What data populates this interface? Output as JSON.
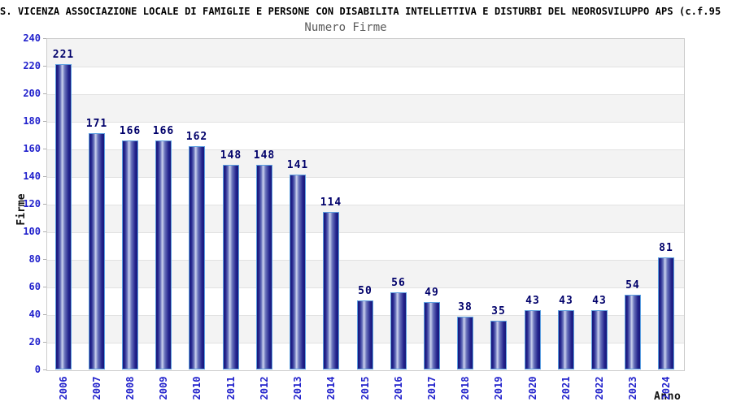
{
  "header": {
    "title": "S. VICENZA ASSOCIAZIONE LOCALE DI FAMIGLIE E PERSONE CON DISABILITA INTELLETTIVA E DISTURBI DEL NEOROSVILUPPO APS (c.f.95"
  },
  "chart_data": {
    "type": "bar",
    "title": "Numero Firme",
    "xlabel": "Anno",
    "ylabel": "Firme",
    "categories": [
      "2006",
      "2007",
      "2008",
      "2009",
      "2010",
      "2011",
      "2012",
      "2013",
      "2014",
      "2015",
      "2016",
      "2017",
      "2018",
      "2019",
      "2020",
      "2021",
      "2022",
      "2023",
      "2024"
    ],
    "values": [
      221,
      171,
      166,
      166,
      162,
      148,
      148,
      141,
      114,
      50,
      56,
      49,
      38,
      35,
      43,
      43,
      43,
      54,
      81
    ],
    "ylim": [
      0,
      240
    ],
    "ytick_step": 20,
    "grid": "alternating-horizontal-bands",
    "legend": "none",
    "colors": {
      "title": "#000000",
      "subtitle": "#5a5a5a",
      "tick_label": "#2222cc",
      "value_label": "#00006a",
      "axis_title": "#111111",
      "bar_dark": "#17177a",
      "bar_mid": "#6a74bc",
      "bar_light": "#ccd3ee",
      "bar_border": "#5d9fe0",
      "band_gray": "#f3f3f3",
      "band_white": "#ffffff",
      "grid_line": "#e2e2e2",
      "plot_border": "#cccccc"
    }
  }
}
